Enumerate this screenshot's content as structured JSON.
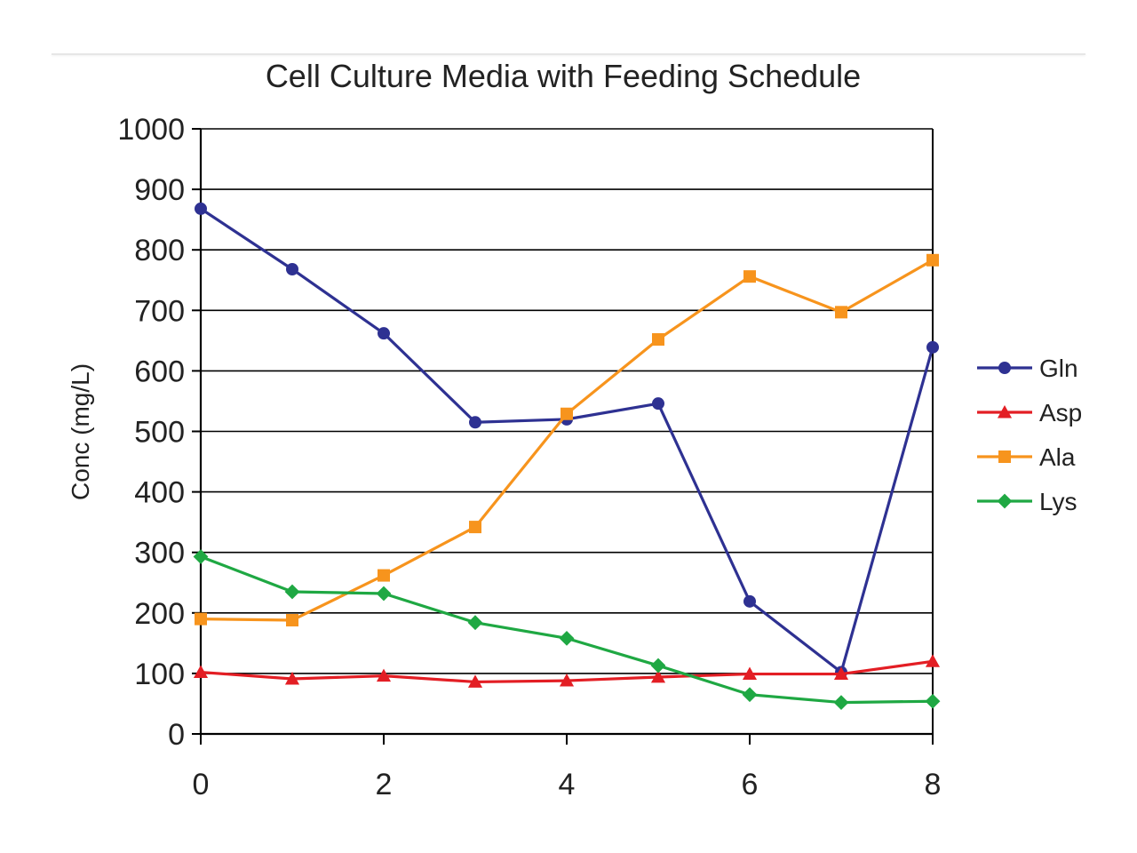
{
  "chart_data": {
    "type": "line",
    "title": "Cell Culture Media with Feeding Schedule",
    "xlabel": "",
    "ylabel": "Conc (mg/L)",
    "xlim": [
      0,
      8
    ],
    "ylim": [
      0,
      1000
    ],
    "x_ticks": [
      0,
      2,
      4,
      6,
      8
    ],
    "y_ticks": [
      0,
      100,
      200,
      300,
      400,
      500,
      600,
      700,
      800,
      900,
      1000
    ],
    "grid": "horizontal",
    "legend_position": "right",
    "x": [
      0,
      1,
      2,
      3,
      4,
      5,
      6,
      7,
      8
    ],
    "series": [
      {
        "name": "Gln",
        "color": "#2e3192",
        "marker": "circle",
        "values": [
          868,
          768,
          662,
          515,
          520,
          546,
          219,
          102,
          639
        ]
      },
      {
        "name": "Asp",
        "color": "#e31e24",
        "marker": "triangle",
        "values": [
          102,
          91,
          96,
          86,
          88,
          94,
          99,
          99,
          120
        ]
      },
      {
        "name": "Ala",
        "color": "#f7941d",
        "marker": "square",
        "values": [
          190,
          188,
          262,
          342,
          529,
          652,
          756,
          697,
          783
        ]
      },
      {
        "name": "Lys",
        "color": "#1fa843",
        "marker": "diamond",
        "values": [
          293,
          235,
          232,
          184,
          158,
          113,
          65,
          52,
          54
        ]
      }
    ]
  }
}
